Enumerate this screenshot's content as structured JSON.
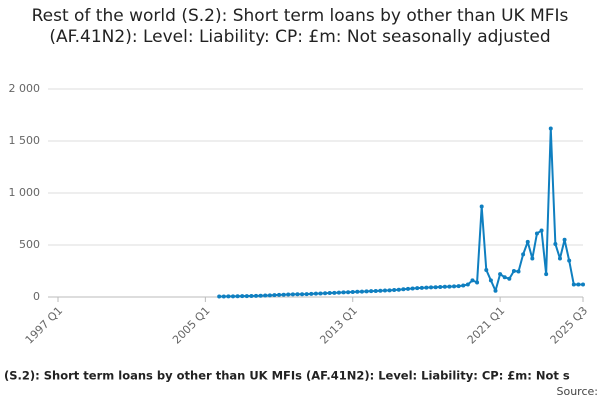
{
  "chart_data": {
    "type": "line",
    "title": "Rest of the world (S.2): Short term loans by other than UK MFIs (AF.41N2): Level: Liability: CP: £m: Not seasonally adjusted",
    "caption": "(S.2): Short term loans by other than UK MFIs (AF.41N2): Level: Liability: CP: £m: Not s",
    "source": "Source:",
    "color": "#0f7fc0",
    "grid": true,
    "ylim": [
      0,
      2000
    ],
    "yticks": [
      0,
      500,
      {
        "value": 1000,
        "label": "1 000"
      },
      {
        "value": 1500,
        "label": "1 500"
      },
      {
        "value": 2000,
        "label": "2 000"
      }
    ],
    "categories": [
      "1997 Q1",
      null,
      null,
      null,
      null,
      null,
      null,
      null,
      null,
      null,
      null,
      null,
      null,
      null,
      null,
      null,
      null,
      null,
      null,
      null,
      null,
      null,
      null,
      null,
      null,
      null,
      null,
      null,
      null,
      null,
      null,
      null,
      "2005 Q1",
      null,
      null,
      null,
      null,
      null,
      null,
      null,
      null,
      null,
      null,
      null,
      null,
      null,
      null,
      null,
      null,
      null,
      null,
      null,
      null,
      null,
      null,
      null,
      null,
      null,
      null,
      null,
      null,
      null,
      null,
      null,
      "2013 Q1",
      null,
      null,
      null,
      null,
      null,
      null,
      null,
      null,
      null,
      null,
      null,
      null,
      null,
      null,
      null,
      null,
      null,
      null,
      null,
      null,
      null,
      null,
      null,
      null,
      null,
      null,
      null,
      null,
      null,
      null,
      null,
      "2021 Q1",
      null,
      null,
      null,
      null,
      null,
      null,
      null,
      null,
      null,
      null,
      null,
      null,
      null,
      null,
      null,
      null,
      null,
      "2025 Q3"
    ],
    "values": [
      null,
      null,
      null,
      null,
      null,
      null,
      null,
      null,
      null,
      null,
      null,
      null,
      null,
      null,
      null,
      null,
      null,
      null,
      null,
      null,
      null,
      null,
      null,
      null,
      null,
      null,
      null,
      null,
      null,
      null,
      null,
      null,
      null,
      null,
      null,
      5,
      5,
      6,
      6,
      7,
      8,
      9,
      10,
      11,
      12,
      14,
      16,
      18,
      20,
      22,
      24,
      25,
      26,
      27,
      28,
      30,
      32,
      34,
      36,
      38,
      40,
      42,
      44,
      46,
      48,
      50,
      52,
      54,
      56,
      58,
      60,
      62,
      64,
      67,
      70,
      74,
      78,
      82,
      85,
      88,
      90,
      92,
      94,
      96,
      98,
      100,
      102,
      105,
      110,
      120,
      160,
      140,
      870,
      260,
      160,
      60,
      220,
      190,
      175,
      250,
      245,
      410,
      530,
      370,
      610,
      640,
      220,
      1620,
      510,
      370,
      550,
      350,
      120,
      120,
      120
    ]
  }
}
